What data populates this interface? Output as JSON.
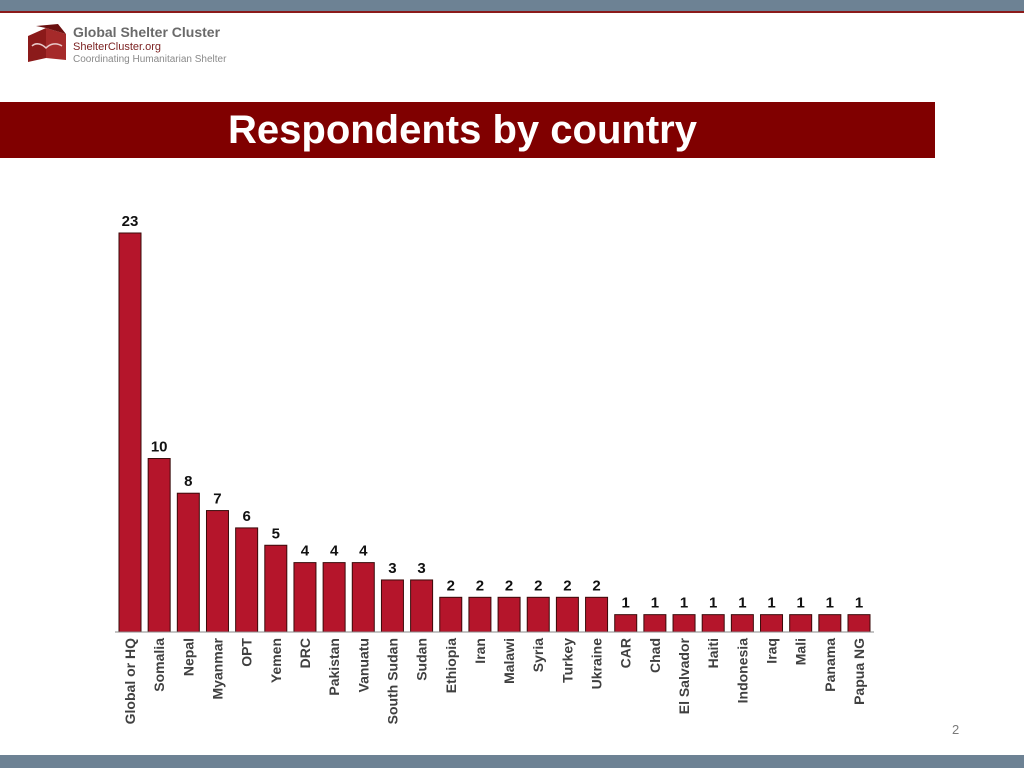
{
  "header": {
    "logo_title": "Global Shelter Cluster",
    "logo_url": "ShelterCluster.org",
    "logo_tagline": "Coordinating Humanitarian Shelter"
  },
  "slide": {
    "title": "Respondents by country",
    "page_number": "2"
  },
  "colors": {
    "bar_fill": "#b5152b",
    "bar_stroke": "#3a0a0a",
    "title_band": "#800000",
    "frame_bar": "#6d8294"
  },
  "chart_data": {
    "type": "bar",
    "title": "",
    "xlabel": "",
    "ylabel": "",
    "ylim": [
      0,
      23
    ],
    "grid": false,
    "categories": [
      "Global or HQ",
      "Somalia",
      "Nepal",
      "Myanmar",
      "OPT",
      "Yemen",
      "DRC",
      "Pakistan",
      "Vanuatu",
      "South Sudan",
      "Sudan",
      "Ethiopia",
      "Iran",
      "Malawi",
      "Syria",
      "Turkey",
      "Ukraine",
      "CAR",
      "Chad",
      "El Salvador",
      "Haiti",
      "Indonesia",
      "Iraq",
      "Mali",
      "Panama",
      "Papua NG"
    ],
    "values": [
      23,
      10,
      8,
      7,
      6,
      5,
      4,
      4,
      4,
      3,
      3,
      2,
      2,
      2,
      2,
      2,
      2,
      1,
      1,
      1,
      1,
      1,
      1,
      1,
      1,
      1
    ]
  }
}
